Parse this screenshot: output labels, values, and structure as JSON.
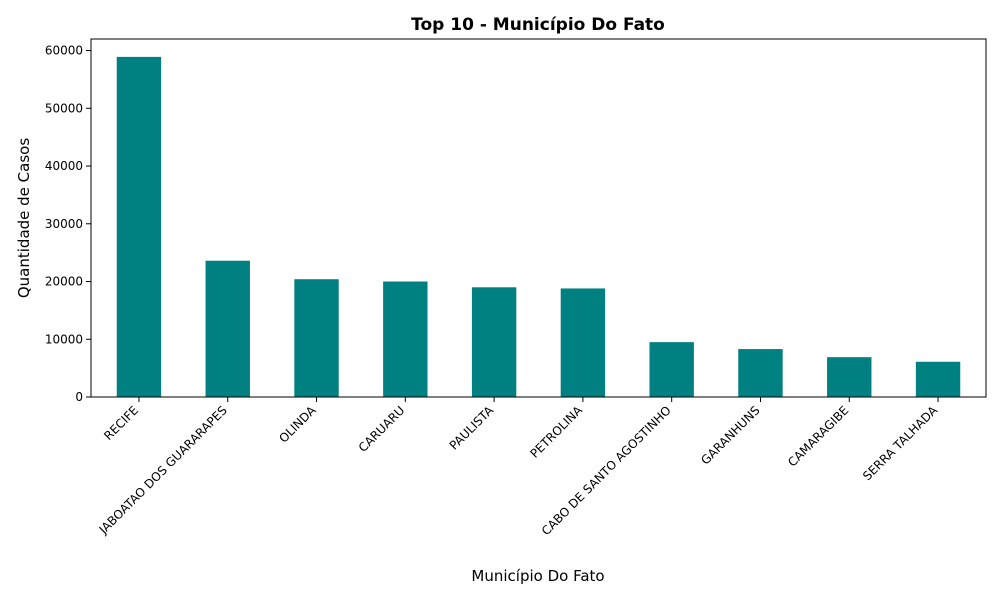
{
  "chart_data": {
    "type": "bar",
    "title": "Top 10 - Município Do Fato",
    "xlabel": "Município Do Fato",
    "ylabel": "Quantidade de Casos",
    "categories": [
      "RECIFE",
      "JABOATAO DOS GUARARAPES",
      "OLINDA",
      "CARUARU",
      "PAULISTA",
      "PETROLINA",
      "CABO DE SANTO AGOSTINHO",
      "GARANHUNS",
      "CAMARAGIBE",
      "SERRA TALHADA"
    ],
    "values": [
      58900,
      23600,
      20400,
      20000,
      19000,
      18800,
      9500,
      8300,
      6900,
      6100
    ],
    "ylim": [
      0,
      62000
    ],
    "yticks": [
      0,
      10000,
      20000,
      30000,
      40000,
      50000,
      60000
    ],
    "ytick_labels": [
      "0",
      "10000",
      "20000",
      "30000",
      "40000",
      "50000",
      "60000"
    ],
    "bar_color": "#008080",
    "grid": false,
    "legend": "none"
  }
}
